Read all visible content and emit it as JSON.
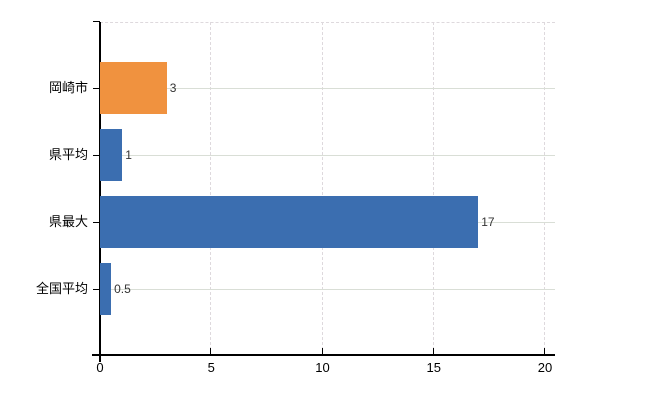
{
  "chart_data": {
    "type": "bar",
    "orientation": "horizontal",
    "title": "",
    "xlabel": "",
    "ylabel": "",
    "categories": [
      "岡崎市",
      "県平均",
      "県最大",
      "全国平均"
    ],
    "values": [
      3,
      1,
      17,
      0.5
    ],
    "value_labels": [
      "3",
      "1",
      "17",
      "0.5"
    ],
    "bar_colors": [
      "#F0923F",
      "#3B6EB0",
      "#3B6EB0",
      "#3B6EB0"
    ],
    "xlim": [
      0,
      20
    ],
    "x_ticks": [
      0,
      5,
      10,
      15,
      20
    ],
    "x_tick_labels": [
      "0",
      "5",
      "10",
      "15",
      "20"
    ],
    "grid": "vertical dashed gridlines at x ticks, solid light horizontal line through each category row, dashed top border",
    "legend": "none"
  },
  "colors": {
    "background": "#ffffff",
    "axis": "#000000",
    "vertical_grid": "#ded9dd",
    "horizontal_grid": "#d9ded6",
    "value_label_text": "#333333",
    "category_label_text": "#000000"
  }
}
